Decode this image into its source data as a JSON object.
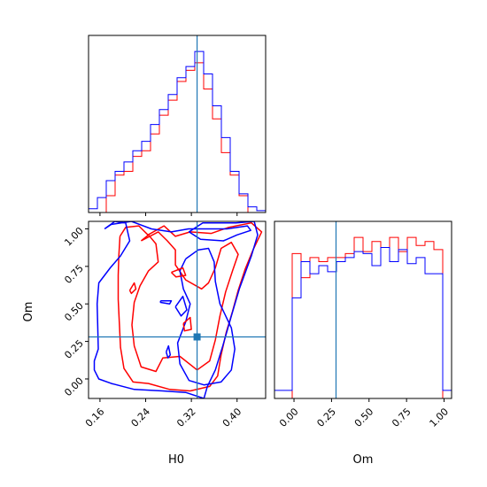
{
  "chart_data": {
    "type": "corner",
    "parameters": [
      "H0",
      "Om"
    ],
    "truth": {
      "H0": 0.33,
      "Om": 0.28
    },
    "truth_color": "#1f77b4",
    "series": [
      {
        "color": "#ff0000"
      },
      {
        "color": "#0000ff"
      }
    ],
    "panels": [
      {
        "id": "hist-H0",
        "type": "histogram",
        "param": "H0",
        "xlim": [
          0.14,
          0.45
        ],
        "bin_edges": [
          0.14,
          0.1555,
          0.171,
          0.1865,
          0.202,
          0.2175,
          0.233,
          0.2485,
          0.264,
          0.2795,
          0.295,
          0.3105,
          0.326,
          0.3415,
          0.357,
          0.3725,
          0.388,
          0.4035,
          0.419,
          0.4345,
          0.45
        ],
        "counts": [
          [
            0,
            0,
            9,
            20,
            22,
            30,
            33,
            42,
            52,
            60,
            70,
            76,
            80,
            66,
            50,
            32,
            20,
            9,
            0,
            0
          ],
          [
            2,
            8,
            17,
            22,
            27,
            33,
            38,
            47,
            55,
            63,
            72,
            78,
            86,
            74,
            57,
            40,
            22,
            10,
            3,
            1
          ]
        ],
        "xticks": [
          0.16,
          0.24,
          0.32,
          0.4
        ]
      },
      {
        "id": "hist-Om",
        "type": "histogram",
        "param": "Om",
        "xlim": [
          -0.13,
          1.05
        ],
        "bin_edges": [
          -0.13,
          -0.071,
          -0.012,
          0.047,
          0.106,
          0.165,
          0.224,
          0.283,
          0.342,
          0.401,
          0.46,
          0.519,
          0.578,
          0.637,
          0.696,
          0.755,
          0.814,
          0.873,
          0.932,
          0.991,
          1.05
        ],
        "counts": [
          [
            0,
            0,
            72,
            60,
            70,
            68,
            70,
            70,
            72,
            80,
            73,
            78,
            75,
            80,
            73,
            80,
            76,
            78,
            74,
            0
          ],
          [
            4,
            4,
            50,
            68,
            62,
            66,
            63,
            68,
            70,
            73,
            72,
            66,
            75,
            68,
            74,
            67,
            70,
            62,
            62,
            4
          ]
        ],
        "xticks": [
          0.0,
          0.25,
          0.5,
          0.75,
          1.0
        ],
        "xtick_labels": [
          "0.00",
          "0.25",
          "0.50",
          "0.75",
          "1.00"
        ],
        "xlabel": "Om"
      },
      {
        "id": "contour-H0-Om",
        "type": "contour",
        "x": "H0",
        "y": "Om",
        "xlim": [
          0.14,
          0.45
        ],
        "ylim": [
          -0.13,
          1.05
        ],
        "xticks": [
          0.16,
          0.24,
          0.32,
          0.4
        ],
        "xtick_labels": [
          "0.16",
          "0.24",
          "0.32",
          "0.40"
        ],
        "yticks": [
          0.0,
          0.25,
          0.5,
          0.75,
          1.0
        ],
        "ytick_labels": [
          "0.00",
          "0.25",
          "0.50",
          "0.75",
          "1.00"
        ],
        "xlabel": "H0",
        "ylabel": "Om",
        "contours": [
          {
            "series": 0,
            "level": "outer",
            "points": [
              [
                0.195,
                0.95
              ],
              [
                0.205,
                1.01
              ],
              [
                0.228,
                1.02
              ],
              [
                0.244,
                0.96
              ],
              [
                0.272,
                1.02
              ],
              [
                0.292,
                0.95
              ],
              [
                0.318,
                0.98
              ],
              [
                0.355,
                0.97
              ],
              [
                0.385,
                1.01
              ],
              [
                0.425,
                1.04
              ],
              [
                0.443,
                0.98
              ],
              [
                0.428,
                0.86
              ],
              [
                0.414,
                0.73
              ],
              [
                0.402,
                0.59
              ],
              [
                0.392,
                0.45
              ],
              [
                0.381,
                0.31
              ],
              [
                0.372,
                0.16
              ],
              [
                0.366,
                0.02
              ],
              [
                0.352,
                -0.05
              ],
              [
                0.318,
                -0.08
              ],
              [
                0.282,
                -0.07
              ],
              [
                0.245,
                -0.03
              ],
              [
                0.218,
                -0.02
              ],
              [
                0.202,
                0.07
              ],
              [
                0.196,
                0.21
              ],
              [
                0.194,
                0.37
              ],
              [
                0.192,
                0.53
              ],
              [
                0.192,
                0.69
              ],
              [
                0.193,
                0.82
              ],
              [
                0.195,
                0.95
              ]
            ]
          },
          {
            "series": 0,
            "level": "inner",
            "points": [
              [
                0.232,
                0.92
              ],
              [
                0.245,
                0.96
              ],
              [
                0.258,
                0.9
              ],
              [
                0.262,
                0.78
              ],
              [
                0.245,
                0.72
              ],
              [
                0.23,
                0.62
              ],
              [
                0.22,
                0.51
              ],
              [
                0.216,
                0.36
              ],
              [
                0.22,
                0.22
              ],
              [
                0.232,
                0.08
              ],
              [
                0.258,
                0.05
              ],
              [
                0.27,
                0.14
              ],
              [
                0.3,
                0.15
              ],
              [
                0.33,
                0.06
              ],
              [
                0.352,
                0.12
              ],
              [
                0.362,
                0.26
              ],
              [
                0.37,
                0.42
              ],
              [
                0.38,
                0.58
              ],
              [
                0.392,
                0.72
              ],
              [
                0.402,
                0.83
              ],
              [
                0.39,
                0.91
              ],
              [
                0.372,
                0.87
              ],
              [
                0.362,
                0.74
              ],
              [
                0.35,
                0.64
              ],
              [
                0.338,
                0.6
              ],
              [
                0.31,
                0.66
              ],
              [
                0.292,
                0.76
              ],
              [
                0.292,
                0.86
              ],
              [
                0.278,
                0.92
              ],
              [
                0.262,
                0.98
              ],
              [
                0.232,
                0.92
              ]
            ]
          },
          {
            "series": 1,
            "level": "outer",
            "points": [
              [
                0.168,
                1.0
              ],
              [
                0.186,
                1.05
              ],
              [
                0.205,
                1.04
              ],
              [
                0.212,
                0.92
              ],
              [
                0.196,
                0.82
              ],
              [
                0.178,
                0.74
              ],
              [
                0.158,
                0.64
              ],
              [
                0.155,
                0.5
              ],
              [
                0.156,
                0.37
              ],
              [
                0.157,
                0.2
              ],
              [
                0.15,
                0.12
              ],
              [
                0.15,
                0.06
              ],
              [
                0.158,
                0.0
              ],
              [
                0.18,
                -0.03
              ],
              [
                0.22,
                -0.07
              ],
              [
                0.27,
                -0.08
              ],
              [
                0.31,
                -0.09
              ],
              [
                0.342,
                -0.13
              ],
              [
                0.348,
                -0.05
              ],
              [
                0.362,
                0.06
              ],
              [
                0.375,
                0.22
              ],
              [
                0.39,
                0.42
              ],
              [
                0.404,
                0.6
              ],
              [
                0.425,
                0.82
              ],
              [
                0.436,
                0.96
              ],
              [
                0.43,
                1.05
              ],
              [
                0.398,
                1.04
              ],
              [
                0.34,
                1.04
              ],
              [
                0.316,
                0.98
              ],
              [
                0.336,
                0.93
              ],
              [
                0.376,
                0.92
              ],
              [
                0.4,
                0.96
              ],
              [
                0.424,
                0.99
              ],
              [
                0.418,
                1.02
              ],
              [
                0.382,
                1.0
              ],
              [
                0.315,
                1.0
              ],
              [
                0.285,
                0.98
              ],
              [
                0.25,
                1.0
              ],
              [
                0.215,
                1.05
              ],
              [
                0.18,
                1.03
              ],
              [
                0.168,
                1.0
              ]
            ]
          },
          {
            "series": 1,
            "level": "inner",
            "points": [
              [
                0.31,
                0.8
              ],
              [
                0.332,
                0.86
              ],
              [
                0.35,
                0.87
              ],
              [
                0.36,
                0.78
              ],
              [
                0.362,
                0.65
              ],
              [
                0.37,
                0.5
              ],
              [
                0.39,
                0.34
              ],
              [
                0.396,
                0.2
              ],
              [
                0.39,
                0.06
              ],
              [
                0.372,
                -0.02
              ],
              [
                0.342,
                -0.04
              ],
              [
                0.316,
                -0.01
              ],
              [
                0.3,
                0.1
              ],
              [
                0.296,
                0.24
              ],
              [
                0.31,
                0.38
              ],
              [
                0.318,
                0.5
              ],
              [
                0.306,
                0.6
              ],
              [
                0.3,
                0.72
              ],
              [
                0.31,
                0.8
              ]
            ]
          },
          {
            "series": 0,
            "level": "island",
            "points": [
              [
                0.212,
                0.59
              ],
              [
                0.22,
                0.64
              ],
              [
                0.223,
                0.6
              ],
              [
                0.215,
                0.57
              ],
              [
                0.212,
                0.59
              ]
            ]
          },
          {
            "series": 0,
            "level": "island",
            "points": [
              [
                0.285,
                0.71
              ],
              [
                0.305,
                0.74
              ],
              [
                0.31,
                0.69
              ],
              [
                0.293,
                0.68
              ],
              [
                0.285,
                0.71
              ]
            ]
          },
          {
            "series": 0,
            "level": "island",
            "points": [
              [
                0.306,
                0.37
              ],
              [
                0.318,
                0.41
              ],
              [
                0.32,
                0.33
              ],
              [
                0.308,
                0.32
              ],
              [
                0.306,
                0.37
              ]
            ]
          },
          {
            "series": 1,
            "level": "island",
            "points": [
              [
                0.266,
                0.52
              ],
              [
                0.285,
                0.52
              ],
              [
                0.282,
                0.5
              ],
              [
                0.266,
                0.51
              ],
              [
                0.266,
                0.52
              ]
            ]
          },
          {
            "series": 1,
            "level": "island",
            "points": [
              [
                0.292,
                0.48
              ],
              [
                0.305,
                0.55
              ],
              [
                0.312,
                0.46
              ],
              [
                0.302,
                0.42
              ],
              [
                0.292,
                0.48
              ]
            ]
          },
          {
            "series": 1,
            "level": "island",
            "points": [
              [
                0.276,
                0.18
              ],
              [
                0.28,
                0.22
              ],
              [
                0.283,
                0.16
              ],
              [
                0.279,
                0.14
              ],
              [
                0.276,
                0.18
              ]
            ]
          }
        ]
      }
    ]
  }
}
